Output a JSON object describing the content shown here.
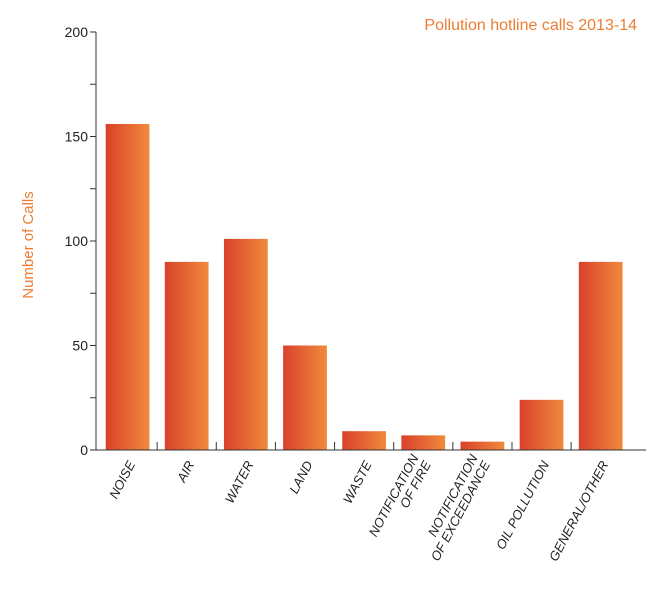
{
  "chart_data": {
    "type": "bar",
    "title": "Pollution hotline calls 2013-14",
    "xlabel": "",
    "ylabel": "Number of Calls",
    "ylim": [
      0,
      200
    ],
    "yticks": [
      0,
      50,
      100,
      150,
      200
    ],
    "grid": false,
    "categories": [
      [
        "NOISE"
      ],
      [
        "AIR"
      ],
      [
        "WATER"
      ],
      [
        "LAND"
      ],
      [
        "WASTE"
      ],
      [
        "NOTIFICATION",
        "OF FIRE"
      ],
      [
        "NOTIFICATION",
        "OF EXCEEDANCE"
      ],
      [
        "OIL POLLUTION"
      ],
      [
        "GENERAL/OTHER"
      ]
    ],
    "values": [
      156,
      90,
      101,
      50,
      9,
      7,
      4,
      24,
      90
    ],
    "colors": {
      "bar_dark": "#d9412b",
      "bar_light": "#f08a3c",
      "accent": "#ee7d33"
    }
  }
}
